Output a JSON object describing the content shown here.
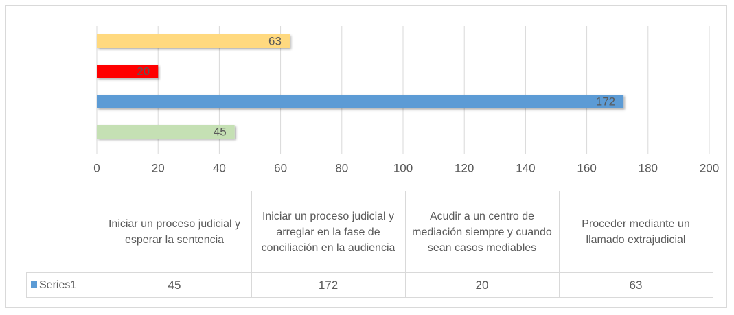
{
  "chart_data": {
    "type": "bar",
    "orientation": "horizontal",
    "categories": [
      "Iniciar un proceso judicial y esperar la sentencia",
      "Iniciar un proceso judicial y arreglar en la fase de conciliación en la audiencia",
      "Acudir a un centro de mediación siempre y cuando sean casos mediables",
      "Proceder mediante un llamado extrajudicial"
    ],
    "series": [
      {
        "name": "Series1",
        "color": "#5b9bd5",
        "point_colors": [
          "#c5e0b4",
          "#5b9bd5",
          "#ff0000",
          "#ffd97f"
        ],
        "values": [
          45,
          172,
          20,
          63
        ]
      }
    ],
    "xlim": [
      0,
      200
    ],
    "xticks": [
      0,
      20,
      40,
      60,
      80,
      100,
      120,
      140,
      160,
      180,
      200
    ],
    "grid": true,
    "data_table": true
  }
}
